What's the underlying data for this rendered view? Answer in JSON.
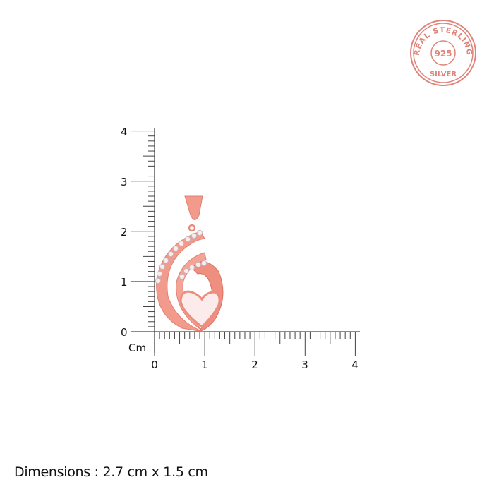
{
  "badge": {
    "text_top": "REAL STERLING",
    "text_center": "925",
    "text_bottom": "SILVER",
    "color": "#e0837a"
  },
  "ruler": {
    "unit_label": "Cm",
    "x_ticks": [
      "0",
      "1",
      "2",
      "3",
      "4"
    ],
    "y_ticks": [
      "0",
      "1",
      "2",
      "3",
      "4"
    ],
    "minor_divisions_per_unit": 10
  },
  "product": {
    "type": "pendant",
    "metal_color": "#f29a8c",
    "stone_color": "#f4eef0"
  },
  "dimensions_text": "Dimensions : 2.7 cm x 1.5 cm"
}
